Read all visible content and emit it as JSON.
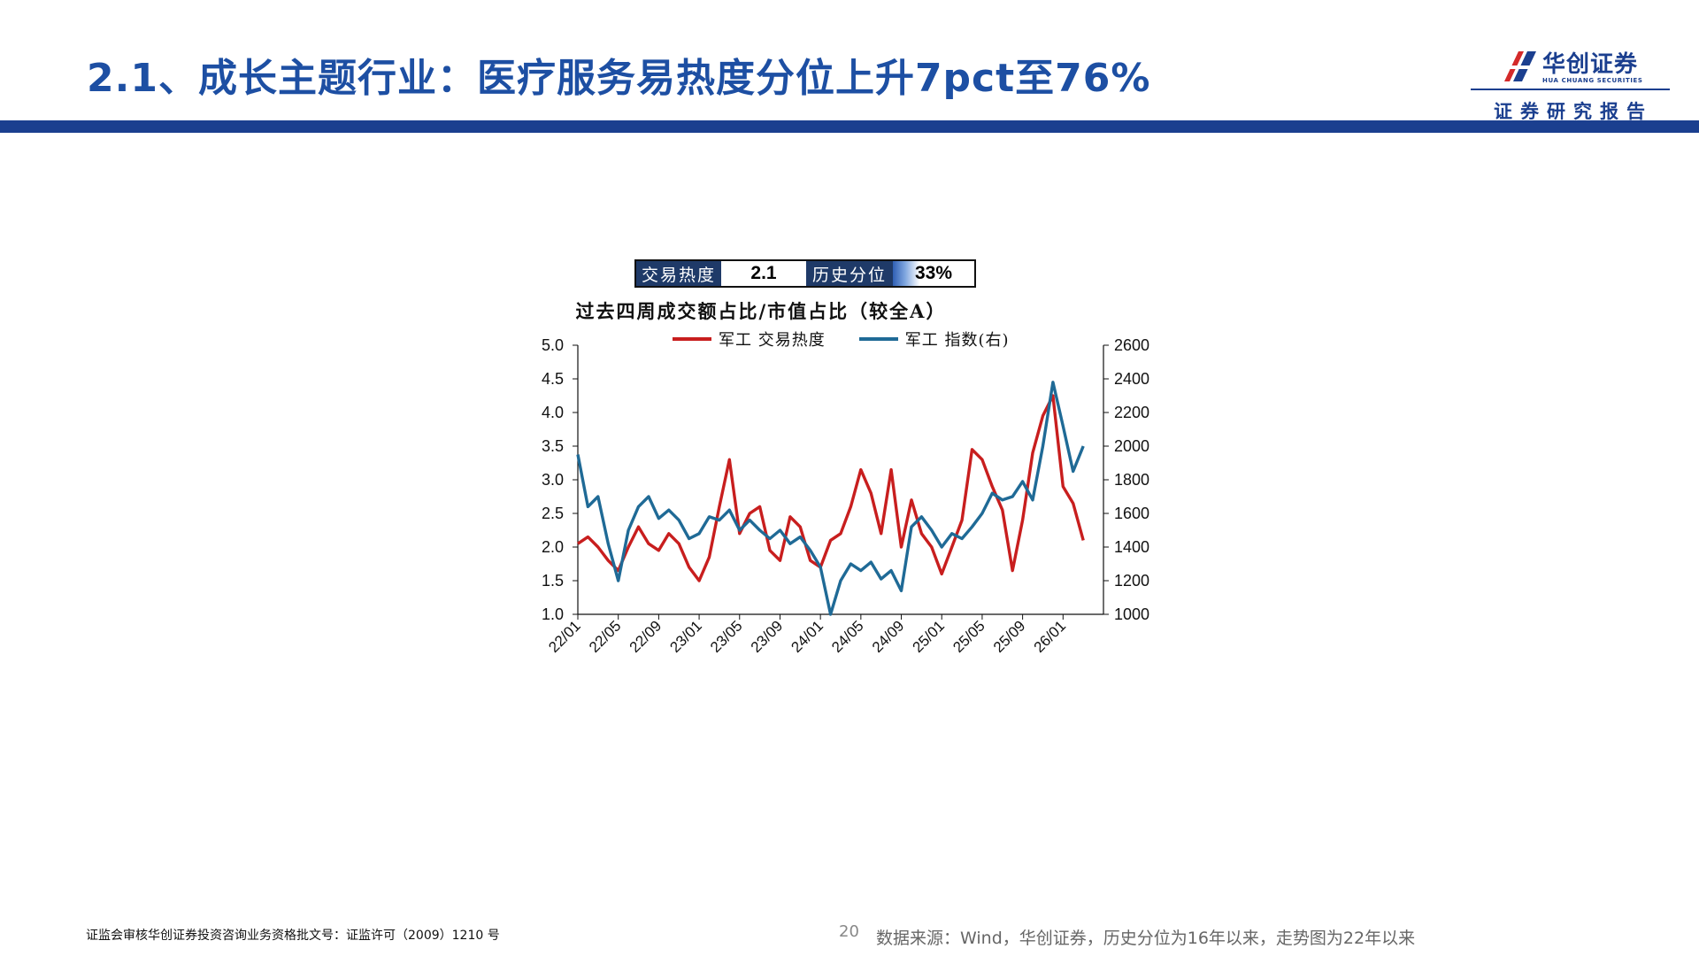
{
  "header": {
    "title": "2.1、成长主题行业：医疗服务易热度分位上升7pct至76%",
    "logo_name": "华创证券",
    "logo_subtitle": "HUA CHUANG SECURITIES",
    "report_label": "证券研究报告"
  },
  "heat_box": {
    "heat_label": "交易热度",
    "heat_value": "2.1",
    "percentile_label": "历史分位",
    "percentile_value": "33%",
    "percentile_fraction": 0.33
  },
  "colors": {
    "title": "#1d4fa3",
    "bar": "#1b3f8f",
    "series_heat": "#c81e1e",
    "series_index": "#1f6a96"
  },
  "chart_data": {
    "type": "line",
    "title": "过去四周成交额占比/市值占比（较全A）",
    "legend_placement": "top",
    "grid": false,
    "x_ticks": [
      "22/01",
      "22/05",
      "22/09",
      "23/01",
      "23/05",
      "23/09",
      "24/01",
      "24/05",
      "24/09",
      "25/01",
      "25/05",
      "25/09",
      "26/01"
    ],
    "x_range": [
      "2022-01",
      "2026-05"
    ],
    "y_left": {
      "ticks": [
        "5.0",
        "4.5",
        "4.0",
        "3.5",
        "3.0",
        "2.5",
        "2.0",
        "1.5",
        "1.0"
      ],
      "range": [
        1.0,
        5.0
      ]
    },
    "y_right": {
      "ticks": [
        "2600",
        "2400",
        "2200",
        "2000",
        "1800",
        "1600",
        "1400",
        "1200",
        "1000"
      ],
      "range": [
        1000,
        2600
      ]
    },
    "series": [
      {
        "name": "军工 交易热度",
        "axis": "left",
        "points": [
          [
            "2022-01",
            2.05
          ],
          [
            "2022-02",
            2.15
          ],
          [
            "2022-03",
            2.0
          ],
          [
            "2022-04",
            1.8
          ],
          [
            "2022-05",
            1.65
          ],
          [
            "2022-06",
            2.0
          ],
          [
            "2022-07",
            2.3
          ],
          [
            "2022-08",
            2.05
          ],
          [
            "2022-09",
            1.95
          ],
          [
            "2022-10",
            2.2
          ],
          [
            "2022-11",
            2.05
          ],
          [
            "2022-12",
            1.7
          ],
          [
            "2023-01",
            1.5
          ],
          [
            "2023-02",
            1.85
          ],
          [
            "2023-03",
            2.6
          ],
          [
            "2023-04",
            3.3
          ],
          [
            "2023-05",
            2.2
          ],
          [
            "2023-06",
            2.5
          ],
          [
            "2023-07",
            2.6
          ],
          [
            "2023-08",
            1.95
          ],
          [
            "2023-09",
            1.8
          ],
          [
            "2023-10",
            2.45
          ],
          [
            "2023-11",
            2.3
          ],
          [
            "2023-12",
            1.8
          ],
          [
            "2024-01",
            1.7
          ],
          [
            "2024-02",
            2.1
          ],
          [
            "2024-03",
            2.2
          ],
          [
            "2024-04",
            2.6
          ],
          [
            "2024-05",
            3.15
          ],
          [
            "2024-06",
            2.8
          ],
          [
            "2024-07",
            2.2
          ],
          [
            "2024-08",
            3.15
          ],
          [
            "2024-09",
            2.0
          ],
          [
            "2024-10",
            2.7
          ],
          [
            "2024-11",
            2.2
          ],
          [
            "2024-12",
            2.0
          ],
          [
            "2025-01",
            1.6
          ],
          [
            "2025-02",
            2.0
          ],
          [
            "2025-03",
            2.4
          ],
          [
            "2025-04",
            3.45
          ],
          [
            "2025-05",
            3.3
          ],
          [
            "2025-06",
            2.9
          ],
          [
            "2025-07",
            2.55
          ],
          [
            "2025-08",
            1.65
          ],
          [
            "2025-09",
            2.4
          ],
          [
            "2025-10",
            3.4
          ],
          [
            "2025-11",
            3.95
          ],
          [
            "2025-12",
            4.25
          ],
          [
            "2026-01",
            2.9
          ],
          [
            "2026-02",
            2.65
          ],
          [
            "2026-03",
            2.1
          ]
        ]
      },
      {
        "name": "军工 指数(右)",
        "axis": "right",
        "points": [
          [
            "2022-01",
            1950
          ],
          [
            "2022-02",
            1640
          ],
          [
            "2022-03",
            1700
          ],
          [
            "2022-04",
            1420
          ],
          [
            "2022-05",
            1200
          ],
          [
            "2022-06",
            1500
          ],
          [
            "2022-07",
            1640
          ],
          [
            "2022-08",
            1700
          ],
          [
            "2022-09",
            1570
          ],
          [
            "2022-10",
            1620
          ],
          [
            "2022-11",
            1560
          ],
          [
            "2022-12",
            1450
          ],
          [
            "2023-01",
            1480
          ],
          [
            "2023-02",
            1580
          ],
          [
            "2023-03",
            1560
          ],
          [
            "2023-04",
            1620
          ],
          [
            "2023-05",
            1500
          ],
          [
            "2023-06",
            1560
          ],
          [
            "2023-07",
            1500
          ],
          [
            "2023-08",
            1450
          ],
          [
            "2023-09",
            1500
          ],
          [
            "2023-10",
            1420
          ],
          [
            "2023-11",
            1460
          ],
          [
            "2023-12",
            1380
          ],
          [
            "2024-01",
            1280
          ],
          [
            "2024-02",
            1000
          ],
          [
            "2024-03",
            1200
          ],
          [
            "2024-04",
            1300
          ],
          [
            "2024-05",
            1260
          ],
          [
            "2024-06",
            1310
          ],
          [
            "2024-07",
            1210
          ],
          [
            "2024-08",
            1260
          ],
          [
            "2024-09",
            1140
          ],
          [
            "2024-10",
            1520
          ],
          [
            "2024-11",
            1580
          ],
          [
            "2024-12",
            1500
          ],
          [
            "2025-01",
            1400
          ],
          [
            "2025-02",
            1480
          ],
          [
            "2025-03",
            1450
          ],
          [
            "2025-04",
            1520
          ],
          [
            "2025-05",
            1600
          ],
          [
            "2025-06",
            1720
          ],
          [
            "2025-07",
            1680
          ],
          [
            "2025-08",
            1700
          ],
          [
            "2025-09",
            1790
          ],
          [
            "2025-10",
            1680
          ],
          [
            "2025-11",
            2000
          ],
          [
            "2025-12",
            2380
          ],
          [
            "2026-01",
            2120
          ],
          [
            "2026-02",
            1850
          ],
          [
            "2026-03",
            2000
          ]
        ]
      }
    ]
  },
  "footer": {
    "license": "证监会审核华创证券投资咨询业务资格批文号：证监许可（2009）1210 号",
    "page": "20",
    "source": "数据来源：Wind，华创证券，历史分位为16年以来，走势图为22年以来"
  }
}
